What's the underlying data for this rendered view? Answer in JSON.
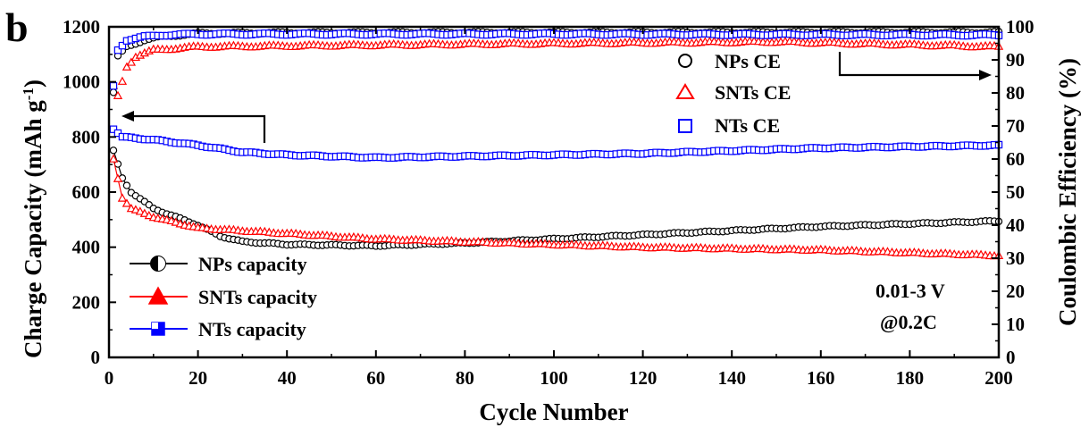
{
  "panel_label": "b",
  "chart_data": {
    "type": "scatter",
    "xlabel": "Cycle Number",
    "ylabel_left": "Charge Capacity (mAh g",
    "ylabel_left_sup": "-1",
    "ylabel_left_close": ")",
    "ylabel_right": "Coulombic Efficiency (%)",
    "xlim": [
      0,
      200
    ],
    "ylim_left": [
      0,
      1200
    ],
    "ylim_right": [
      0,
      100
    ],
    "x_ticks": [
      "0",
      "20",
      "40",
      "60",
      "80",
      "100",
      "120",
      "140",
      "160",
      "180",
      "200"
    ],
    "y_left_ticks": [
      "0",
      "200",
      "400",
      "600",
      "800",
      "1000",
      "1200"
    ],
    "y_right_ticks": [
      "0",
      "10",
      "20",
      "30",
      "40",
      "50",
      "60",
      "70",
      "80",
      "90",
      "100"
    ],
    "annotations": [
      "0.01-3 V",
      "@0.2C"
    ],
    "capacity_series": [
      {
        "name": "NPs capacity",
        "color": "#000000",
        "marker": "circle",
        "knots": [
          [
            1,
            750
          ],
          [
            3,
            650
          ],
          [
            5,
            600
          ],
          [
            10,
            540
          ],
          [
            15,
            510
          ],
          [
            20,
            480
          ],
          [
            25,
            440
          ],
          [
            30,
            420
          ],
          [
            40,
            410
          ],
          [
            60,
            405
          ],
          [
            80,
            415
          ],
          [
            100,
            430
          ],
          [
            120,
            445
          ],
          [
            140,
            460
          ],
          [
            160,
            475
          ],
          [
            180,
            485
          ],
          [
            200,
            495
          ]
        ]
      },
      {
        "name": "SNTs capacity",
        "color": "#ff0000",
        "marker": "triangle",
        "knots": [
          [
            1,
            720
          ],
          [
            3,
            580
          ],
          [
            5,
            540
          ],
          [
            10,
            510
          ],
          [
            15,
            490
          ],
          [
            20,
            470
          ],
          [
            30,
            460
          ],
          [
            40,
            450
          ],
          [
            60,
            430
          ],
          [
            80,
            420
          ],
          [
            100,
            410
          ],
          [
            120,
            400
          ],
          [
            140,
            395
          ],
          [
            160,
            390
          ],
          [
            180,
            380
          ],
          [
            200,
            370
          ]
        ]
      },
      {
        "name": "NTs capacity",
        "color": "#0000ff",
        "marker": "square",
        "knots": [
          [
            1,
            830
          ],
          [
            3,
            800
          ],
          [
            10,
            790
          ],
          [
            20,
            770
          ],
          [
            30,
            745
          ],
          [
            40,
            735
          ],
          [
            60,
            725
          ],
          [
            80,
            730
          ],
          [
            100,
            735
          ],
          [
            120,
            740
          ],
          [
            140,
            750
          ],
          [
            160,
            760
          ],
          [
            180,
            765
          ],
          [
            200,
            770
          ]
        ]
      }
    ],
    "ce_series": [
      {
        "name": "NPs CE",
        "color": "#000000",
        "marker": "circle",
        "knots": [
          [
            1,
            80
          ],
          [
            2,
            91
          ],
          [
            4,
            94
          ],
          [
            8,
            96
          ],
          [
            12,
            97
          ],
          [
            20,
            98
          ],
          [
            40,
            98.2
          ],
          [
            100,
            98.3
          ],
          [
            200,
            98.3
          ]
        ]
      },
      {
        "name": "SNTs CE",
        "color": "#ff0000",
        "marker": "triangle",
        "knots": [
          [
            1,
            82
          ],
          [
            2,
            79
          ],
          [
            4,
            88
          ],
          [
            6,
            91
          ],
          [
            10,
            93
          ],
          [
            20,
            94
          ],
          [
            60,
            94.5
          ],
          [
            100,
            95
          ],
          [
            150,
            95.5
          ],
          [
            200,
            94
          ]
        ]
      },
      {
        "name": "NTs CE",
        "color": "#0000ff",
        "marker": "square",
        "knots": [
          [
            1,
            82
          ],
          [
            2,
            93
          ],
          [
            4,
            96
          ],
          [
            8,
            97
          ],
          [
            12,
            97.5
          ],
          [
            20,
            97.8
          ],
          [
            100,
            97.8
          ],
          [
            200,
            97.5
          ]
        ]
      }
    ],
    "legend_capacity_position": "bottom-left",
    "legend_ce_position": "top-right"
  }
}
